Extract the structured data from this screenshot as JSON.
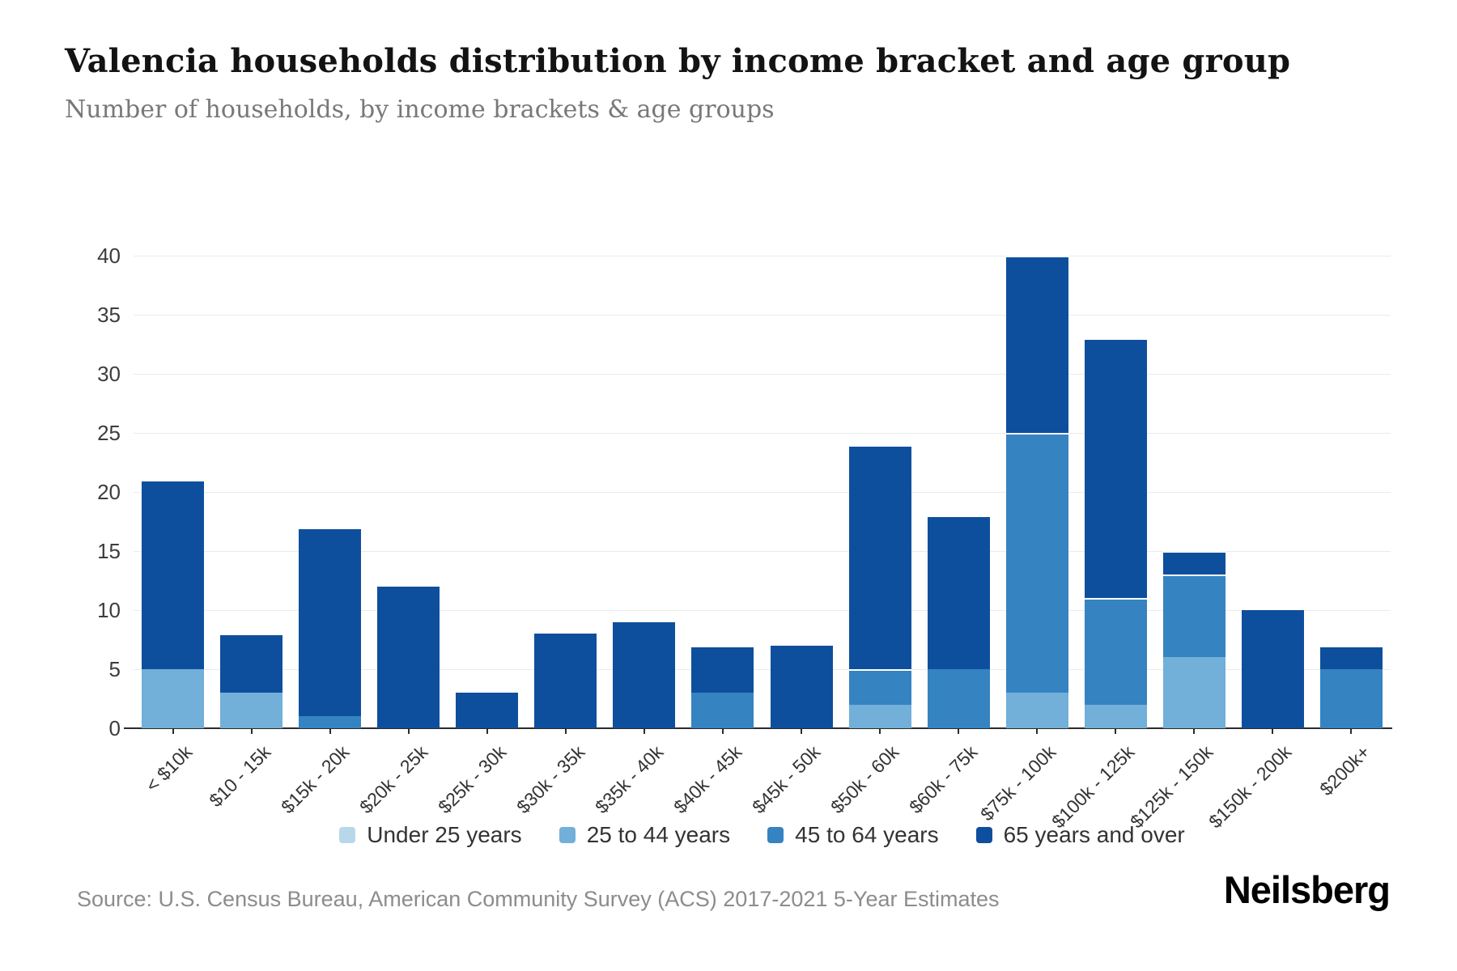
{
  "header": {
    "title": "Valencia households distribution by income bracket and age group",
    "subtitle": "Number of households, by income brackets & age groups"
  },
  "footer": {
    "source": "Source: U.S. Census Bureau, American Community Survey (ACS) 2017-2021 5-Year Estimates",
    "brand": "Neilsberg"
  },
  "colors": {
    "axis": "#2b2b2b",
    "gridline": "#ebebeb",
    "tick_text": "#3d3d3d"
  },
  "chart_data": {
    "type": "bar",
    "stacked": true,
    "title": "Valencia households distribution by income bracket and age group",
    "xlabel": "",
    "ylabel": "Number of households",
    "ylim": [
      0,
      40
    ],
    "yticks": [
      0,
      5,
      10,
      15,
      20,
      25,
      30,
      35,
      40
    ],
    "grid": true,
    "legend_position": "bottom",
    "categories": [
      "< $10k",
      "$10 - 15k",
      "$15k - 20k",
      "$20k - 25k",
      "$25k - 30k",
      "$30k - 35k",
      "$35k - 40k",
      "$40k - 45k",
      "$45k - 50k",
      "$50k - 60k",
      "$60k - 75k",
      "$75k - 100k",
      "$100k - 125k",
      "$125k - 150k",
      "$150k - 200k",
      "$200k+"
    ],
    "series": [
      {
        "name": "Under 25 years",
        "color": "#b9d7ea",
        "values": [
          0,
          0,
          0,
          0,
          0,
          0,
          0,
          0,
          0,
          0,
          0,
          0,
          0,
          0,
          0,
          0
        ]
      },
      {
        "name": "25 to 44 years",
        "color": "#72afd9",
        "values": [
          5,
          3,
          0,
          0,
          0,
          0,
          0,
          0,
          0,
          2,
          0,
          3,
          2,
          6,
          0,
          0
        ]
      },
      {
        "name": "45 to 64 years",
        "color": "#3583c1",
        "values": [
          0,
          0,
          1,
          0,
          0,
          0,
          0,
          3,
          0,
          3,
          5,
          22,
          9,
          7,
          0,
          5
        ]
      },
      {
        "name": "65 years and over",
        "color": "#0e4f9d",
        "values": [
          16,
          5,
          16,
          12,
          3,
          8,
          9,
          4,
          7,
          19,
          13,
          15,
          22,
          2,
          10,
          2
        ]
      }
    ],
    "totals": [
      21,
      8,
      17,
      12,
      3,
      8,
      9,
      7,
      7,
      24,
      18,
      40,
      33,
      15,
      10,
      7
    ]
  }
}
